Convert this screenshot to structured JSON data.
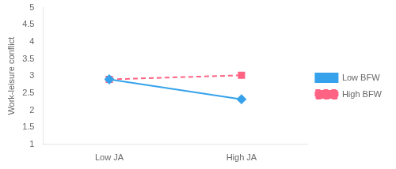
{
  "chart_data": {
    "type": "line",
    "categories": [
      "Low JA",
      "High JA"
    ],
    "series": [
      {
        "name": "Low BFW",
        "values": [
          2.9,
          2.32
        ],
        "marker": "diamond",
        "line_style": "solid"
      },
      {
        "name": "High BFW",
        "values": [
          2.9,
          3.02
        ],
        "marker": "square",
        "line_style": "dashed"
      }
    ],
    "ylabel": "Work-leisure conflict",
    "ylim": [
      1,
      5
    ],
    "yticks": [
      1,
      1.5,
      2,
      2.5,
      3,
      3.5,
      4,
      4.5,
      5
    ],
    "grid": false,
    "legend": "right"
  }
}
